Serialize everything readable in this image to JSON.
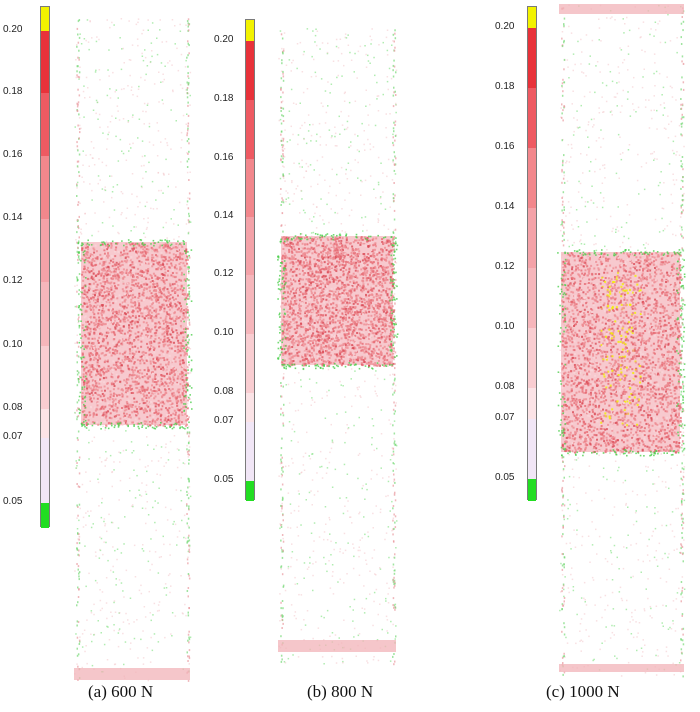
{
  "chart_data": [
    {
      "type": "heatmap",
      "caption": "(a) 600 N",
      "colorbar": {
        "ticks": [
          "0.20",
          "0.18",
          "0.16",
          "0.14",
          "0.12",
          "0.10",
          "0.08",
          "0.07",
          "0.05"
        ],
        "bands": [
          {
            "from": 0.2,
            "to": 0.21,
            "color": "#f2f200"
          },
          {
            "from": 0.18,
            "to": 0.2,
            "color": "#e8323a"
          },
          {
            "from": 0.16,
            "to": 0.18,
            "color": "#ee5a62"
          },
          {
            "from": 0.14,
            "to": 0.16,
            "color": "#f2878c"
          },
          {
            "from": 0.12,
            "to": 0.14,
            "color": "#f4a2a8"
          },
          {
            "from": 0.1,
            "to": 0.12,
            "color": "#f6b6bb"
          },
          {
            "from": 0.08,
            "to": 0.1,
            "color": "#f9cdd1"
          },
          {
            "from": 0.07,
            "to": 0.08,
            "color": "#fbe3e6"
          },
          {
            "from": 0.05,
            "to": 0.07,
            "color": "#f1e6f6"
          },
          {
            "from": 0.04,
            "to": 0.05,
            "color": "#22dd22"
          }
        ]
      }
    },
    {
      "type": "heatmap",
      "caption": "(b) 800 N",
      "colorbar": {
        "ticks": [
          "0.20",
          "0.18",
          "0.16",
          "0.14",
          "0.12",
          "0.10",
          "0.08",
          "0.07",
          "0.05"
        ],
        "bands": [
          {
            "from": 0.2,
            "to": 0.21,
            "color": "#f2f200"
          },
          {
            "from": 0.18,
            "to": 0.2,
            "color": "#e8323a"
          },
          {
            "from": 0.16,
            "to": 0.18,
            "color": "#ee5a62"
          },
          {
            "from": 0.14,
            "to": 0.16,
            "color": "#f2878c"
          },
          {
            "from": 0.12,
            "to": 0.14,
            "color": "#f4a2a8"
          },
          {
            "from": 0.1,
            "to": 0.12,
            "color": "#f6b6bb"
          },
          {
            "from": 0.08,
            "to": 0.1,
            "color": "#f9cdd1"
          },
          {
            "from": 0.07,
            "to": 0.08,
            "color": "#fbe3e6"
          },
          {
            "from": 0.05,
            "to": 0.07,
            "color": "#f1e6f6"
          },
          {
            "from": 0.04,
            "to": 0.05,
            "color": "#22dd22"
          }
        ]
      }
    },
    {
      "type": "heatmap",
      "caption": "(c) 1000 N",
      "colorbar": {
        "ticks": [
          "0.20",
          "0.18",
          "0.16",
          "0.14",
          "0.12",
          "0.10",
          "0.08",
          "0.07",
          "0.05"
        ],
        "bands": [
          {
            "from": 0.2,
            "to": 0.21,
            "color": "#f2f200"
          },
          {
            "from": 0.18,
            "to": 0.2,
            "color": "#e8323a"
          },
          {
            "from": 0.16,
            "to": 0.18,
            "color": "#ee5a62"
          },
          {
            "from": 0.14,
            "to": 0.16,
            "color": "#f2878c"
          },
          {
            "from": 0.12,
            "to": 0.14,
            "color": "#f4a2a8"
          },
          {
            "from": 0.1,
            "to": 0.12,
            "color": "#f6b6bb"
          },
          {
            "from": 0.08,
            "to": 0.1,
            "color": "#f9cdd1"
          },
          {
            "from": 0.07,
            "to": 0.08,
            "color": "#fbe3e6"
          },
          {
            "from": 0.05,
            "to": 0.07,
            "color": "#f1e6f6"
          },
          {
            "from": 0.04,
            "to": 0.05,
            "color": "#22dd22"
          }
        ]
      }
    }
  ]
}
